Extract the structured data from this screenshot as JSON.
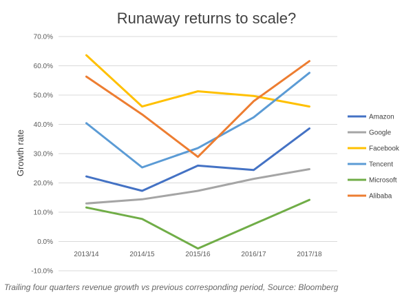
{
  "chart_data": {
    "type": "line",
    "title": "Runaway returns to scale?",
    "xlabel": "",
    "ylabel": "Growth rate",
    "categories": [
      "2013/14",
      "2014/15",
      "2015/16",
      "2016/17",
      "2017/18"
    ],
    "ylim": [
      -10,
      70
    ],
    "yticks": [
      "70.0%",
      "60.0%",
      "50.0%",
      "40.0%",
      "30.0%",
      "20.0%",
      "10.0%",
      "0.0%",
      "-10.0%"
    ],
    "grid": true,
    "legend": "right",
    "series": [
      {
        "name": "Amazon",
        "color": "#4472c4",
        "values": [
          22.2,
          17.3,
          25.9,
          24.4,
          38.6
        ]
      },
      {
        "name": "Google",
        "color": "#a5a5a5",
        "values": [
          13.0,
          14.4,
          17.3,
          21.4,
          24.7
        ]
      },
      {
        "name": "Facebook",
        "color": "#ffc000",
        "values": [
          63.6,
          46.1,
          51.3,
          49.7,
          46.1
        ]
      },
      {
        "name": "Tencent",
        "color": "#5b9bd5",
        "values": [
          40.4,
          25.3,
          31.9,
          42.4,
          57.6
        ]
      },
      {
        "name": "Microsoft",
        "color": "#70ad47",
        "values": [
          11.6,
          7.7,
          -2.4,
          5.9,
          14.2
        ]
      },
      {
        "name": "Alibaba",
        "color": "#ed7d31",
        "values": [
          56.3,
          43.4,
          28.9,
          47.9,
          61.6
        ]
      }
    ]
  },
  "caption": "Trailing four quarters revenue growth vs previous corresponding period, Source: Bloomberg"
}
